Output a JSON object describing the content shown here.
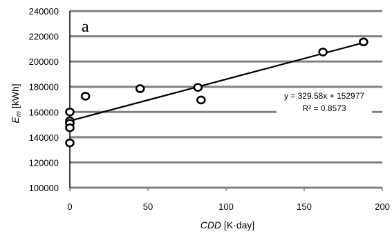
{
  "chart_data": {
    "type": "scatter",
    "panel_label": "a",
    "xlabel": {
      "main": "CDD",
      "unit": " [K·day]"
    },
    "ylabel": {
      "main": "E",
      "sub": "m",
      "unit": " [kWh]"
    },
    "xlim": [
      0,
      200
    ],
    "ylim": [
      100000,
      240000
    ],
    "xticks": [
      "0",
      "50",
      "100",
      "150",
      "200"
    ],
    "yticks": [
      "100000",
      "120000",
      "140000",
      "160000",
      "180000",
      "200000",
      "220000",
      "240000"
    ],
    "grid": "horizontal",
    "points": [
      {
        "x": 0,
        "y": 160000
      },
      {
        "x": 0,
        "y": 153000
      },
      {
        "x": 0,
        "y": 151000
      },
      {
        "x": 0,
        "y": 147500
      },
      {
        "x": 0,
        "y": 135500
      },
      {
        "x": 10,
        "y": 172500
      },
      {
        "x": 45,
        "y": 178500
      },
      {
        "x": 82,
        "y": 179500
      },
      {
        "x": 84,
        "y": 169500
      },
      {
        "x": 162,
        "y": 207500
      },
      {
        "x": 188,
        "y": 215500
      }
    ],
    "trendline": {
      "slope": 329.58,
      "intercept": 152977,
      "x_range": [
        0,
        188
      ],
      "equation": "y = 329.58x + 152977",
      "r2": "R² = 0.8573"
    }
  }
}
